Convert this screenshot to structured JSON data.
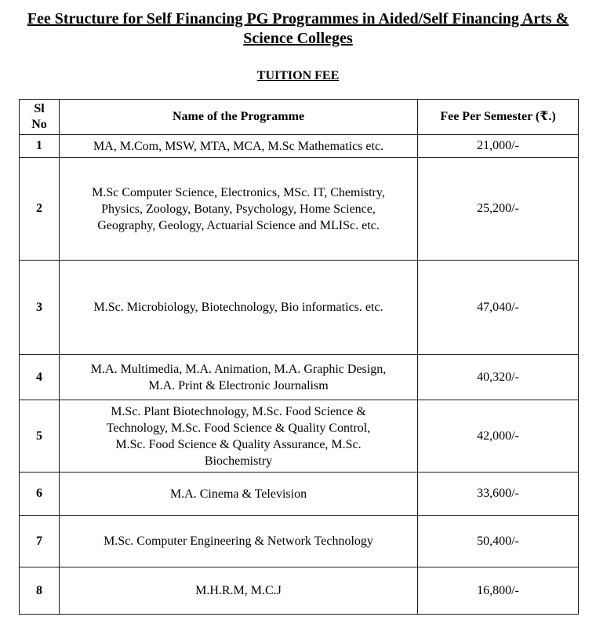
{
  "header": {
    "title": "Fee Structure for Self Financing PG Programmes in Aided/Self Financing Arts &\nScience Colleges",
    "subtitle": "TUITION FEE"
  },
  "table": {
    "columns": [
      "Sl\nNo",
      "Name of the Programme",
      "Fee Per Semester (₹.)"
    ],
    "rows": [
      {
        "sl": "1",
        "name": "MA, M.Com, MSW, MTA, MCA, M.Sc Mathematics etc.",
        "fee": "21,000/-"
      },
      {
        "sl": "2",
        "name": "M.Sc Computer Science, Electronics, MSc. IT, Chemistry,\nPhysics, Zoology, Botany, Psychology, Home Science,\nGeography, Geology, Actuarial Science and MLISc. etc.",
        "fee": "25,200/-"
      },
      {
        "sl": "3",
        "name": "M.Sc. Microbiology, Biotechnology, Bio informatics. etc.",
        "fee": "47,040/-"
      },
      {
        "sl": "4",
        "name": "M.A. Multimedia, M.A. Animation, M.A. Graphic Design,\nM.A. Print & Electronic Journalism",
        "fee": "40,320/-"
      },
      {
        "sl": "5",
        "name": "M.Sc. Plant Biotechnology, M.Sc. Food Science &\nTechnology, M.Sc. Food Science & Quality Control,\nM.Sc. Food Science & Quality Assurance, M.Sc.\nBiochemistry",
        "fee": "42,000/-"
      },
      {
        "sl": "6",
        "name": "M.A. Cinema & Television",
        "fee": "33,600/-"
      },
      {
        "sl": "7",
        "name": "M.Sc. Computer Engineering & Network Technology",
        "fee": "50,400/-"
      },
      {
        "sl": "8",
        "name": "M.H.R.M, M.C.J",
        "fee": "16,800/-"
      }
    ]
  },
  "colors": {
    "background": "#ffffff",
    "text": "#000000",
    "border": "#1c1c1c"
  }
}
